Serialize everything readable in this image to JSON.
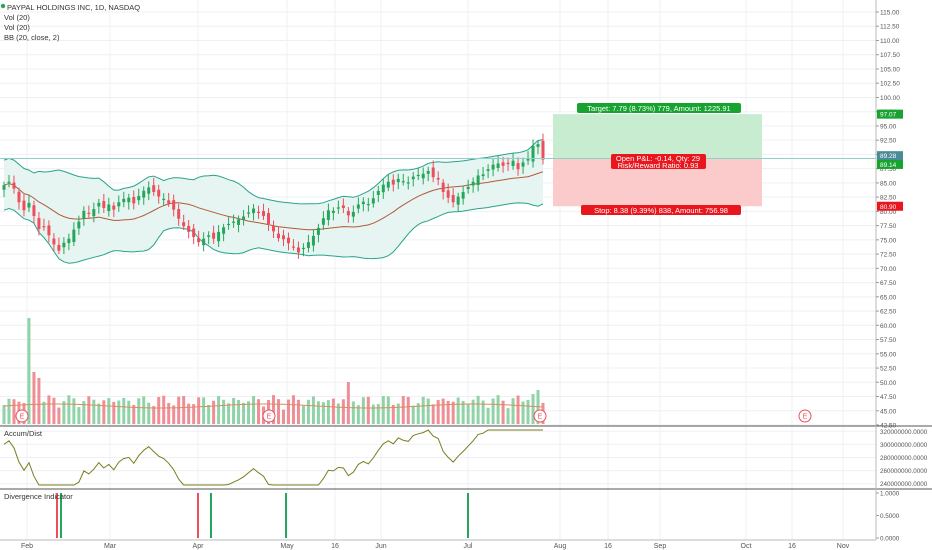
{
  "legend": {
    "title": "PAYPAL HOLDINGS INC, 1D, NASDAQ",
    "vol1": "Vol (20)",
    "vol2": "Vol (20)",
    "bb": "BB (20, close, 2)"
  },
  "price_axis": {
    "labels": [
      "115.00",
      "112.50",
      "110.00",
      "107.50",
      "105.00",
      "102.50",
      "100.00",
      "97.50",
      "95.00",
      "92.50",
      "90.00",
      "87.50",
      "85.00",
      "82.50",
      "80.00",
      "77.50",
      "75.00",
      "72.50",
      "70.00",
      "67.50",
      "65.00",
      "62.50",
      "60.00",
      "57.50",
      "55.00",
      "52.50",
      "50.00",
      "47.50",
      "45.00",
      "42.50"
    ],
    "values": [
      115,
      112.5,
      110,
      107.5,
      105,
      102.5,
      100,
      97.5,
      95,
      92.5,
      90,
      87.5,
      85,
      82.5,
      80,
      77.5,
      75,
      72.5,
      70,
      67.5,
      65,
      62.5,
      60,
      57.5,
      55,
      52.5,
      50,
      47.5,
      45,
      42.5
    ]
  },
  "position": {
    "target_label": "Target: 7.79 (8.73%) 779, Amount: 1225.91",
    "open_label": "Open P&L: -0.14, Qty: 29",
    "ratio_label": "Risk/Reward Ratio: 0.93",
    "stop_label": "Stop: 8.38 (9.39%) 838, Amount: 756.98",
    "target_price": 97.07,
    "entry_price": 89.28,
    "current_price": 89.14,
    "stop_price": 80.9,
    "target_tag": "97.07",
    "entry_tag": "89.28",
    "current_tag": "89.14",
    "stop_tag": "80.90",
    "colors": {
      "profit": "#c8ecd0",
      "loss": "#fbcaca",
      "target_bg": "#17a32f",
      "stop_bg": "#e9161d"
    }
  },
  "earnings_marker": "E",
  "accum": {
    "label": "Accum/Dist",
    "axis_labels": [
      "320000000.0000",
      "300000000.0000",
      "280000000.0000",
      "260000000.0000",
      "240000000.0000"
    ],
    "axis_values": [
      320000000,
      300000000,
      280000000,
      260000000,
      240000000
    ]
  },
  "divergence": {
    "label": "Divergence Indicator",
    "axis_labels": [
      "1.0000",
      "0.5000",
      "0.0000"
    ],
    "axis_values": [
      1,
      0.5,
      0
    ]
  },
  "time_axis": [
    "Feb",
    "Mar",
    "Apr",
    "May",
    "16",
    "Jun",
    "Jul",
    "Aug",
    "16",
    "Sep",
    "Oct",
    "16",
    "Nov"
  ],
  "colors": {
    "up": "#26a65b",
    "down": "#ee4d5b",
    "bb_fill": "#e6f5f2",
    "bb_line": "#27a38b",
    "basis": "#b25a36",
    "grid": "#eef0f3"
  },
  "chart_data": {
    "type": "candlestick",
    "title": "PAYPAL HOLDINGS INC, 1D, NASDAQ",
    "ylim": [
      42.5,
      115
    ],
    "closes": [
      84.6,
      85.2,
      84.0,
      81.6,
      80.2,
      81.5,
      79.2,
      76.9,
      77.3,
      75.8,
      74.2,
      73.1,
      74.5,
      75.2,
      76.8,
      78.2,
      80.1,
      79.6,
      80.4,
      81.5,
      80.6,
      81.2,
      80.3,
      81.6,
      82.2,
      82.4,
      81.4,
      82.7,
      83.6,
      84.2,
      83.4,
      82.6,
      82.2,
      81.4,
      80.3,
      78.7,
      77.4,
      76.4,
      75.5,
      74.6,
      75.2,
      75.8,
      75.2,
      76.4,
      77.2,
      77.8,
      78.2,
      78.6,
      79.1,
      79.8,
      80.5,
      79.8,
      79.2,
      77.8,
      76.5,
      75.3,
      75.1,
      74.4,
      73.8,
      72.8,
      73.6,
      74.6,
      75.7,
      77.1,
      78.8,
      80.2,
      80.1,
      80.7,
      80.6,
      79.3,
      79.9,
      81.2,
      81.7,
      81.3,
      82.3,
      83.6,
      84.7,
      85.2,
      84.7,
      85.7,
      85.3,
      85.1,
      86.1,
      86.4,
      86.6,
      87.1,
      86.0,
      85.6,
      83.4,
      82.4,
      81.6,
      82.6,
      83.4,
      84.3,
      85.2,
      86.3,
      86.5,
      87.4,
      88.2,
      88.4,
      88.0,
      88.3,
      88.9,
      87.4,
      88.6,
      89.3,
      91.5,
      91.8,
      89.1
    ],
    "volume_spikes": [
      62,
      55,
      52,
      51,
      50,
      49
    ]
  }
}
